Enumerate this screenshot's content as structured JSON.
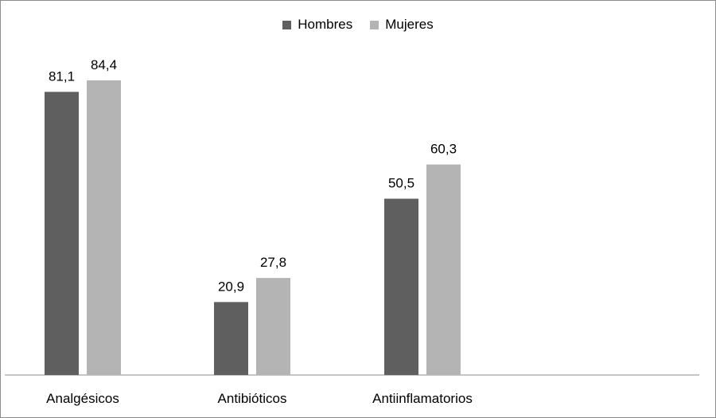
{
  "chart_data": {
    "type": "bar",
    "categories": [
      "Analgésicos",
      "Antibióticos",
      "Antiinflamatorios"
    ],
    "series": [
      {
        "name": "Hombres",
        "values": [
          81.1,
          20.9,
          50.5
        ],
        "labels": [
          "81,1",
          "20,9",
          "50,5"
        ],
        "color": "#5f5f5f"
      },
      {
        "name": "Mujeres",
        "values": [
          84.4,
          27.8,
          60.3
        ],
        "labels": [
          "84,4",
          "27,8",
          "60,3"
        ],
        "color": "#b4b4b4"
      }
    ],
    "title": "",
    "xlabel": "",
    "ylabel": "",
    "ylim": [
      0,
      90
    ],
    "grid": false,
    "legend": "top-center"
  }
}
